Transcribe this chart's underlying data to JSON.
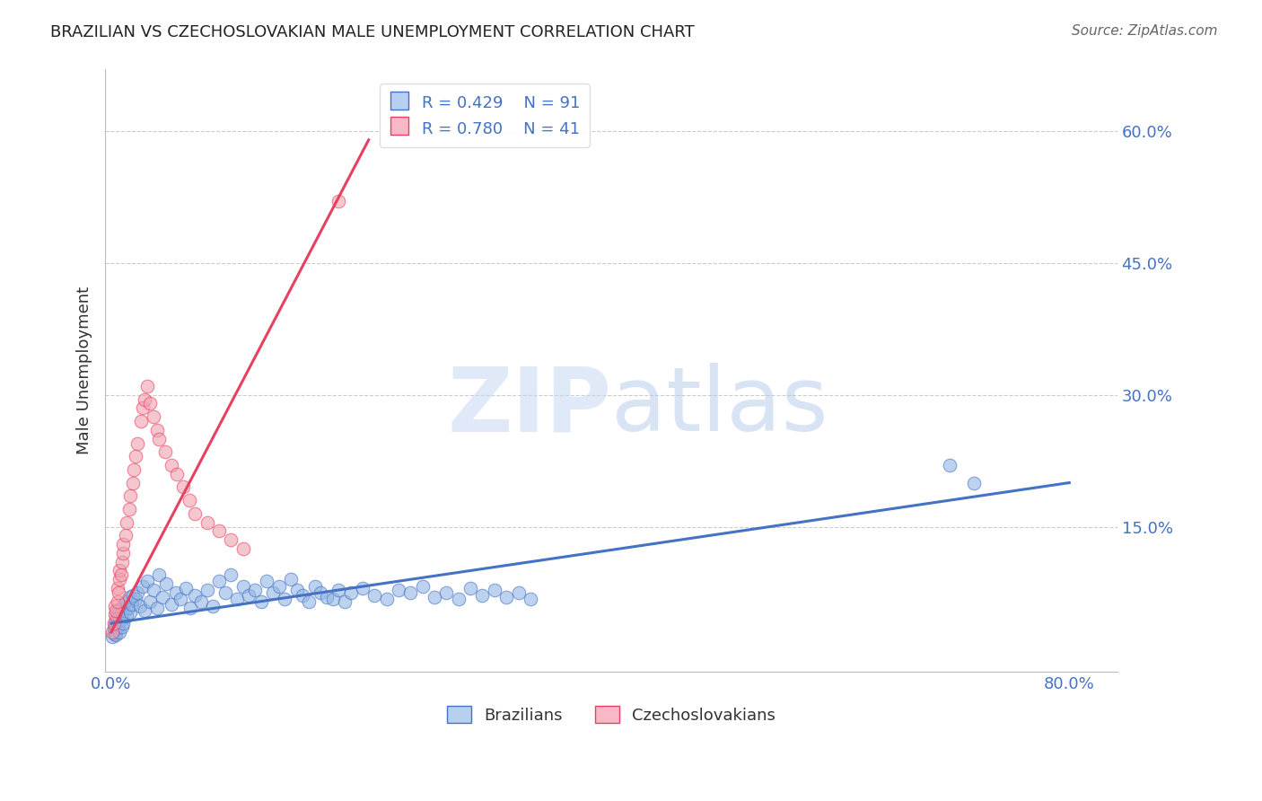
{
  "title": "BRAZILIAN VS CZECHOSLOVAKIAN MALE UNEMPLOYMENT CORRELATION CHART",
  "source": "Source: ZipAtlas.com",
  "ylabel": "Male Unemployment",
  "y_ticks_right": [
    0.0,
    0.15,
    0.3,
    0.45,
    0.6
  ],
  "y_tick_labels_right": [
    "",
    "15.0%",
    "30.0%",
    "45.0%",
    "60.0%"
  ],
  "xlim": [
    -0.005,
    0.84
  ],
  "ylim": [
    -0.015,
    0.67
  ],
  "brazil_R": 0.429,
  "brazil_N": 91,
  "czech_R": 0.78,
  "czech_N": 41,
  "brazil_color": "#92b4e3",
  "czech_color": "#f0a0b0",
  "brazil_line_color": "#4472c4",
  "czech_line_color": "#e84060",
  "title_color": "#222222",
  "axis_color": "#4472c4",
  "grid_color": "#cccccc",
  "background_color": "#ffffff",
  "legend_box_color_brazil": "#b8d0f0",
  "legend_box_color_czech": "#f8b8c8",
  "brazil_scatter_x": [
    0.001,
    0.002,
    0.002,
    0.003,
    0.003,
    0.003,
    0.004,
    0.004,
    0.004,
    0.005,
    0.005,
    0.005,
    0.006,
    0.006,
    0.007,
    0.007,
    0.008,
    0.008,
    0.009,
    0.009,
    0.01,
    0.01,
    0.011,
    0.012,
    0.013,
    0.014,
    0.015,
    0.016,
    0.017,
    0.018,
    0.02,
    0.022,
    0.024,
    0.026,
    0.028,
    0.03,
    0.032,
    0.035,
    0.038,
    0.04,
    0.043,
    0.046,
    0.05,
    0.054,
    0.058,
    0.062,
    0.066,
    0.07,
    0.075,
    0.08,
    0.085,
    0.09,
    0.095,
    0.1,
    0.105,
    0.11,
    0.115,
    0.12,
    0.125,
    0.13,
    0.135,
    0.14,
    0.145,
    0.15,
    0.155,
    0.16,
    0.165,
    0.17,
    0.175,
    0.18,
    0.185,
    0.19,
    0.195,
    0.2,
    0.21,
    0.22,
    0.23,
    0.24,
    0.25,
    0.26,
    0.27,
    0.28,
    0.29,
    0.3,
    0.31,
    0.32,
    0.33,
    0.34,
    0.35,
    0.7,
    0.72
  ],
  "brazil_scatter_y": [
    0.025,
    0.03,
    0.035,
    0.028,
    0.04,
    0.032,
    0.038,
    0.045,
    0.027,
    0.042,
    0.035,
    0.05,
    0.038,
    0.055,
    0.03,
    0.048,
    0.044,
    0.058,
    0.036,
    0.052,
    0.06,
    0.04,
    0.055,
    0.065,
    0.048,
    0.058,
    0.07,
    0.052,
    0.062,
    0.072,
    0.068,
    0.075,
    0.06,
    0.082,
    0.055,
    0.088,
    0.065,
    0.078,
    0.058,
    0.095,
    0.07,
    0.085,
    0.062,
    0.075,
    0.068,
    0.08,
    0.058,
    0.072,
    0.065,
    0.078,
    0.06,
    0.088,
    0.075,
    0.095,
    0.068,
    0.082,
    0.072,
    0.078,
    0.065,
    0.088,
    0.075,
    0.082,
    0.068,
    0.09,
    0.078,
    0.072,
    0.065,
    0.082,
    0.075,
    0.07,
    0.068,
    0.078,
    0.065,
    0.075,
    0.08,
    0.072,
    0.068,
    0.078,
    0.075,
    0.082,
    0.07,
    0.075,
    0.068,
    0.08,
    0.072,
    0.078,
    0.07,
    0.075,
    0.068,
    0.22,
    0.2
  ],
  "czech_scatter_x": [
    0.001,
    0.002,
    0.003,
    0.003,
    0.004,
    0.005,
    0.005,
    0.006,
    0.007,
    0.007,
    0.008,
    0.009,
    0.01,
    0.01,
    0.012,
    0.013,
    0.015,
    0.016,
    0.018,
    0.019,
    0.02,
    0.022,
    0.025,
    0.026,
    0.028,
    0.03,
    0.032,
    0.035,
    0.038,
    0.04,
    0.045,
    0.05,
    0.055,
    0.06,
    0.065,
    0.07,
    0.08,
    0.09,
    0.1,
    0.11,
    0.19
  ],
  "czech_scatter_y": [
    0.03,
    0.04,
    0.05,
    0.06,
    0.055,
    0.065,
    0.08,
    0.075,
    0.09,
    0.1,
    0.095,
    0.11,
    0.12,
    0.13,
    0.14,
    0.155,
    0.17,
    0.185,
    0.2,
    0.215,
    0.23,
    0.245,
    0.27,
    0.285,
    0.295,
    0.31,
    0.29,
    0.275,
    0.26,
    0.25,
    0.235,
    0.22,
    0.21,
    0.195,
    0.18,
    0.165,
    0.155,
    0.145,
    0.135,
    0.125,
    0.52
  ],
  "brazil_trend_x": [
    0.0,
    0.8
  ],
  "brazil_trend_y": [
    0.04,
    0.2
  ],
  "czech_trend_x": [
    0.0,
    0.215
  ],
  "czech_trend_y": [
    0.03,
    0.59
  ]
}
